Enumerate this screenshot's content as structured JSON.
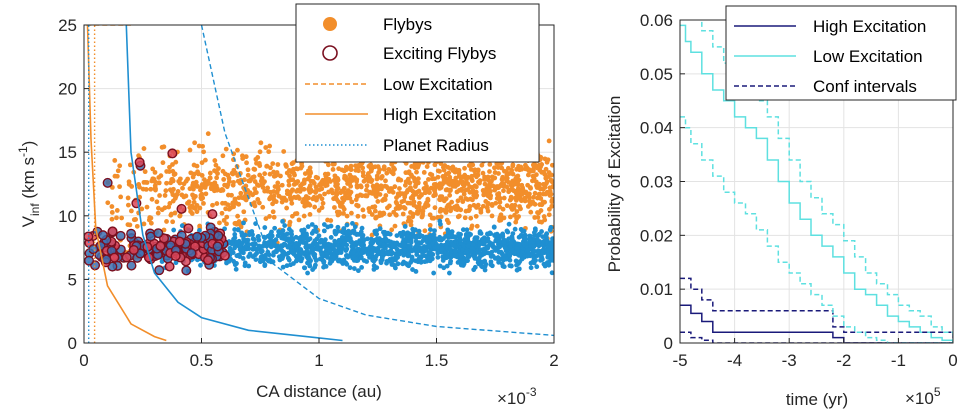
{
  "chart_data": [
    {
      "type": "scatter",
      "xlabel": "CA distance (au)",
      "ylabel": {
        "main": "V",
        "sub": "inf",
        "unit": " (km s",
        "sup": "-1",
        "close": ")"
      },
      "x_multiplier": {
        "prefix": "×10",
        "exp": "-3"
      },
      "xlim": [
        0,
        2
      ],
      "ylim": [
        0,
        25
      ],
      "xticks": [
        "0",
        "0.5",
        "1",
        "1.5",
        "2"
      ],
      "yticks": [
        "0",
        "5",
        "10",
        "15",
        "20",
        "25"
      ],
      "grid": true,
      "legend_position": "top-right",
      "legend": [
        "Flybys",
        "Exciting Flybys",
        "Low Excitation",
        "High Excitation",
        "Planet Radius"
      ],
      "series": [
        {
          "name": "Flybys",
          "style": "orange filled points",
          "x_range": [
            0.1,
            2.0
          ],
          "y_range": [
            5.5,
            17.0
          ],
          "color": "#f28e2b"
        },
        {
          "name": "Flybys",
          "style": "blue filled points",
          "x_range": [
            0.3,
            2.0
          ],
          "y_range": [
            5.5,
            10.0
          ],
          "color": "#1f8fd1"
        },
        {
          "name": "Exciting Flybys",
          "style": "dark red hollow circles",
          "x_range": [
            0.0,
            0.6
          ],
          "y_range": [
            5.5,
            15.5
          ],
          "color": "#7a1020"
        },
        {
          "name": "Low Excitation",
          "style": "dashed line",
          "color": "#f28e2b",
          "x": [
            0.01,
            0.03,
            0.06,
            0.1,
            0.15,
            0.2
          ],
          "y": [
            25,
            25,
            25,
            25,
            25,
            25
          ]
        },
        {
          "name": "Low Excitation",
          "style": "dashed line",
          "color": "#1f8fd1",
          "x": [
            0.5,
            0.6,
            0.8,
            1.0,
            1.2,
            1.5,
            2.0
          ],
          "y": [
            25,
            16.5,
            6.3,
            3.5,
            2.2,
            1.3,
            0.6
          ]
        },
        {
          "name": "High Excitation",
          "style": "solid line",
          "color": "#f28e2b",
          "x": [
            0.015,
            0.03,
            0.05,
            0.1,
            0.2,
            0.3,
            0.35
          ],
          "y": [
            25,
            16,
            9,
            4.5,
            1.5,
            0.5,
            0.2
          ]
        },
        {
          "name": "High Excitation",
          "style": "solid line",
          "color": "#1f8fd1",
          "x": [
            0.18,
            0.2,
            0.25,
            0.3,
            0.4,
            0.5,
            0.7,
            1.0,
            1.1
          ],
          "y": [
            25,
            15,
            8.5,
            5.5,
            3.2,
            2.0,
            1.0,
            0.4,
            0.2
          ]
        },
        {
          "name": "Planet Radius",
          "style": "dotted line",
          "color": "#1f8fd1",
          "x": [
            0.02,
            0.02
          ],
          "y": [
            0,
            25
          ]
        },
        {
          "name": "Planet Radius",
          "style": "dotted line",
          "color": "#f28e2b",
          "x": [
            0.045,
            0.045
          ],
          "y": [
            0,
            25
          ]
        }
      ]
    },
    {
      "type": "line",
      "xlabel": "time (yr)",
      "ylabel": "Probability of Excitation",
      "x_multiplier": {
        "prefix": "×10",
        "exp": "5"
      },
      "xlim": [
        -5,
        0
      ],
      "ylim": [
        0,
        0.06
      ],
      "xticks": [
        "-5",
        "-4",
        "-3",
        "-2",
        "-1",
        "0"
      ],
      "yticks": [
        "0",
        "0.01",
        "0.02",
        "0.03",
        "0.04",
        "0.05",
        "0.06"
      ],
      "grid": true,
      "legend_position": "top-right",
      "legend": [
        "High Excitation",
        "Low Excitation",
        "Conf intervals"
      ],
      "series": [
        {
          "name": "High Excitation",
          "color": "#1a1a7a",
          "style": "solid",
          "x": [
            -5,
            -4.8,
            -4.6,
            -4.4,
            -2.2,
            -2.0,
            0
          ],
          "y": [
            0.007,
            0.0055,
            0.004,
            0.002,
            0.001,
            0,
            0
          ]
        },
        {
          "name": "Low Excitation",
          "color": "#5ee0e0",
          "style": "solid",
          "x": [
            -5,
            -4.9,
            -4.8,
            -4.6,
            -4.4,
            -4.2,
            -4.0,
            -3.8,
            -3.6,
            -3.4,
            -3.2,
            -3.0,
            -2.8,
            -2.6,
            -2.4,
            -2.2,
            -2.0,
            -1.8,
            -1.6,
            -1.4,
            -1.2,
            -1.0,
            -0.8,
            -0.6,
            -0.4,
            -0.2,
            0
          ],
          "y": [
            0.059,
            0.056,
            0.054,
            0.05,
            0.047,
            0.045,
            0.042,
            0.04,
            0.038,
            0.034,
            0.03,
            0.026,
            0.023,
            0.02,
            0.018,
            0.016,
            0.013,
            0.01,
            0.009,
            0.007,
            0.005,
            0.004,
            0.003,
            0.002,
            0.001,
            0.0005,
            0
          ]
        },
        {
          "name": "Conf intervals",
          "color": "#1a1a7a",
          "style": "dashed",
          "x": [
            -5,
            -4.8,
            -4.6,
            -4.4,
            -2.2,
            -2.0,
            0
          ],
          "y": [
            0.012,
            0.01,
            0.008,
            0.006,
            0.003,
            0.002,
            0
          ]
        },
        {
          "name": "Conf intervals",
          "color": "#1a1a7a",
          "style": "dashed",
          "x": [
            -5,
            -4.8,
            -4.6,
            -4.4,
            -2.2,
            -2.0,
            0
          ],
          "y": [
            0.002,
            0.001,
            0.0005,
            0,
            0,
            0,
            0
          ]
        },
        {
          "name": "Conf intervals",
          "color": "#5ee0e0",
          "style": "dashed",
          "x": [
            -5,
            -4.9,
            -4.8,
            -4.6,
            -4.4,
            -4.2,
            -4.0,
            -3.8,
            -3.6,
            -3.4,
            -3.2,
            -3.0,
            -2.8,
            -2.6,
            -2.4,
            -2.2,
            -2.0,
            -1.8,
            -1.6,
            -1.4,
            -1.2,
            -1.0,
            -0.8,
            -0.6,
            -0.4,
            -0.2,
            0
          ],
          "y": [
            0.066,
            0.064,
            0.062,
            0.058,
            0.055,
            0.052,
            0.05,
            0.047,
            0.045,
            0.042,
            0.038,
            0.034,
            0.03,
            0.027,
            0.024,
            0.022,
            0.019,
            0.016,
            0.013,
            0.011,
            0.009,
            0.007,
            0.006,
            0.005,
            0.003,
            0.002,
            0
          ]
        },
        {
          "name": "Conf intervals",
          "color": "#5ee0e0",
          "style": "dashed",
          "x": [
            -5,
            -4.9,
            -4.8,
            -4.6,
            -4.4,
            -4.2,
            -4.0,
            -3.8,
            -3.6,
            -3.4,
            -3.2,
            -3.0,
            -2.8,
            -2.6,
            -2.4,
            -2.2,
            -2.0,
            -1.8,
            -1.6,
            -1.4,
            -1.2,
            -1.0,
            -0.8,
            -0.6,
            -0.4,
            -0.2,
            0
          ],
          "y": [
            0.042,
            0.04,
            0.037,
            0.034,
            0.031,
            0.028,
            0.026,
            0.024,
            0.021,
            0.018,
            0.015,
            0.013,
            0.011,
            0.009,
            0.007,
            0.005,
            0.003,
            0.002,
            0.001,
            0.0005,
            0,
            0,
            0,
            0,
            0,
            0,
            0
          ]
        }
      ]
    }
  ]
}
